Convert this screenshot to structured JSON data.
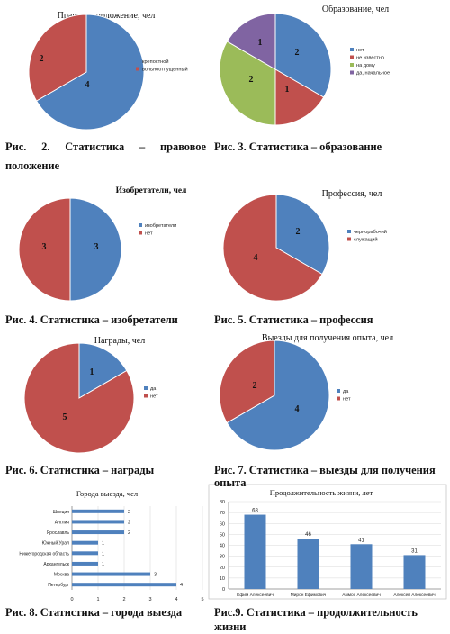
{
  "colors": {
    "blue": "#4F81BD",
    "red": "#C0504D",
    "green": "#9BBB59",
    "purple": "#8064A2",
    "line": "#888888",
    "grid": "#D9D9D9"
  },
  "captions": {
    "fig2_line1": "Рис.    2.    Статистика    –    правовое",
    "fig2_line2": "положение",
    "fig3": "Рис. 3. Статистика – образование",
    "fig4": "Рис. 4. Статистика – изобретатели",
    "fig5": "Рис. 5. Статистика – профессия",
    "fig6": "Рис. 6. Статистика – награды",
    "fig7_line1": "Рис. 7. Статистика – выезды для получения",
    "fig7_line2": "опыта",
    "fig8": "Рис. 8. Статистика – города выезда",
    "fig9": "Рис.9. Статистика – продолжительность жизни"
  },
  "chart_data": [
    {
      "id": "legal",
      "type": "pie",
      "title": "Правовое положение, чел",
      "slices": [
        {
          "label": "крепостной",
          "value": 4,
          "color": "#4F81BD"
        },
        {
          "label": "вольноотпущенный",
          "value": 2,
          "color": "#C0504D"
        }
      ]
    },
    {
      "id": "education",
      "type": "pie",
      "title": "Образование, чел",
      "slices": [
        {
          "label": "нет",
          "value": 2,
          "color": "#4F81BD"
        },
        {
          "label": "не известно",
          "value": 1,
          "color": "#C0504D"
        },
        {
          "label": "на дому",
          "value": 2,
          "color": "#9BBB59"
        },
        {
          "label": "да, начальное",
          "value": 1,
          "color": "#8064A2"
        }
      ]
    },
    {
      "id": "inventors",
      "type": "pie",
      "title": "Изобретатели, чел",
      "slices": [
        {
          "label": "изобретатели",
          "value": 3,
          "color": "#4F81BD"
        },
        {
          "label": "нет",
          "value": 3,
          "color": "#C0504D"
        }
      ]
    },
    {
      "id": "profession",
      "type": "pie",
      "title": "Профессия, чел",
      "slices": [
        {
          "label": "чернорабочий",
          "value": 2,
          "color": "#4F81BD"
        },
        {
          "label": "служащий",
          "value": 4,
          "color": "#C0504D"
        }
      ]
    },
    {
      "id": "awards",
      "type": "pie",
      "title": "Награды, чел",
      "slices": [
        {
          "label": "да",
          "value": 1,
          "color": "#4F81BD"
        },
        {
          "label": "нет",
          "value": 5,
          "color": "#C0504D"
        }
      ]
    },
    {
      "id": "trips",
      "type": "pie",
      "title": "Выезды для получения опыта, чел",
      "slices": [
        {
          "label": "да",
          "value": 4,
          "color": "#4F81BD"
        },
        {
          "label": "нет",
          "value": 2,
          "color": "#C0504D"
        }
      ]
    },
    {
      "id": "cities",
      "type": "bar",
      "orientation": "horizontal",
      "title": "Города выезда, чел",
      "categories": [
        "Швеция",
        "Англия",
        "Ярославль",
        "Южный Урал",
        "Нижегородская область",
        "Архангельск",
        "Москва",
        "Петербург"
      ],
      "values": [
        2,
        2,
        2,
        1,
        1,
        1,
        3,
        4
      ],
      "xlim": [
        0,
        5
      ],
      "xticks": [
        "0",
        "1",
        "2",
        "3",
        "4",
        "5"
      ],
      "grid": true
    },
    {
      "id": "lifespan",
      "type": "bar",
      "title": "Продолжительность жизни, лет",
      "categories": [
        "Ефим Алексеевич",
        "Мирон Ефимович",
        "Аммос Алексеевич",
        "Алексей Алексеевич"
      ],
      "values": [
        68,
        46,
        41,
        31
      ],
      "ylim": [
        0,
        80
      ],
      "yticks": [
        "0",
        "10",
        "20",
        "30",
        "40",
        "50",
        "60",
        "70",
        "80"
      ],
      "grid": true
    }
  ]
}
